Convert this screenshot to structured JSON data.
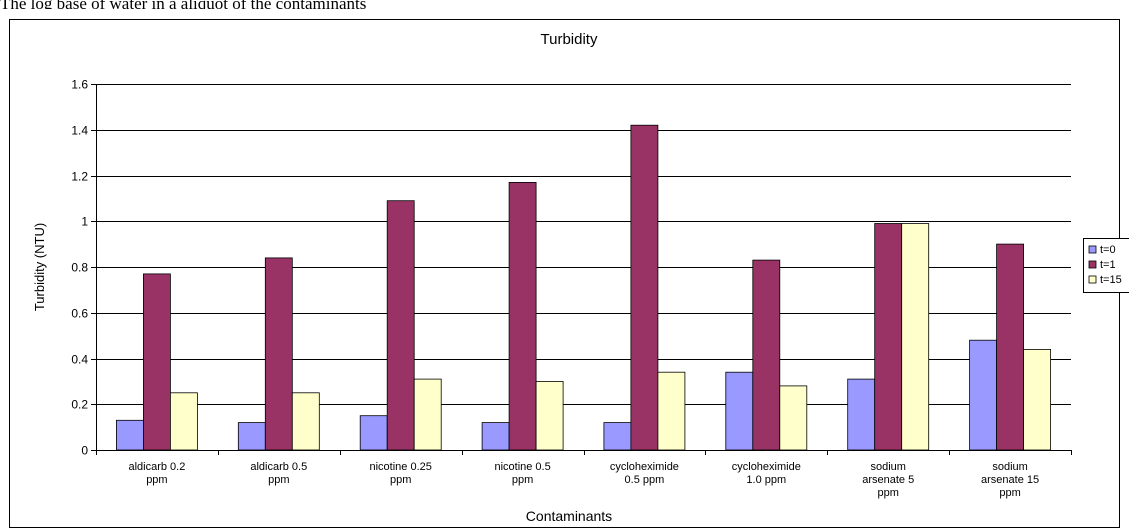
{
  "caption_text": "The log base of water in a aliquot of the contaminants",
  "chart_data": {
    "type": "bar",
    "title": "Turbidity",
    "xlabel": "Contaminants",
    "ylabel": "Turbidity (NTU)",
    "ylim": [
      0,
      1.6
    ],
    "yticks": [
      "0",
      "0.2",
      "0.4",
      "0.6",
      "0.8",
      "1",
      "1.2",
      "1.4",
      "1.6"
    ],
    "grid": true,
    "legend_position": "right",
    "categories": [
      [
        "aldicarb 0.2",
        "ppm"
      ],
      [
        "aldicarb 0.5",
        "ppm"
      ],
      [
        "nicotine 0.25",
        "ppm"
      ],
      [
        "nicotine 0.5",
        "ppm"
      ],
      [
        "cycloheximide",
        "0.5 ppm"
      ],
      [
        "cycloheximide",
        "1.0 ppm"
      ],
      [
        "sodium",
        "arsenate 5",
        "ppm"
      ],
      [
        "sodium",
        "arsenate 15",
        "ppm"
      ]
    ],
    "series": [
      {
        "name": "t=0",
        "color": "#9999FF",
        "values": [
          0.13,
          0.12,
          0.15,
          0.12,
          0.12,
          0.34,
          0.31,
          0.48
        ]
      },
      {
        "name": "t=1",
        "color": "#993366",
        "values": [
          0.77,
          0.84,
          1.09,
          1.17,
          1.42,
          0.83,
          0.99,
          0.9
        ]
      },
      {
        "name": "t=15",
        "color": "#FFFFCC",
        "values": [
          0.25,
          0.25,
          0.31,
          0.3,
          0.34,
          0.28,
          0.99,
          0.44
        ]
      }
    ]
  }
}
